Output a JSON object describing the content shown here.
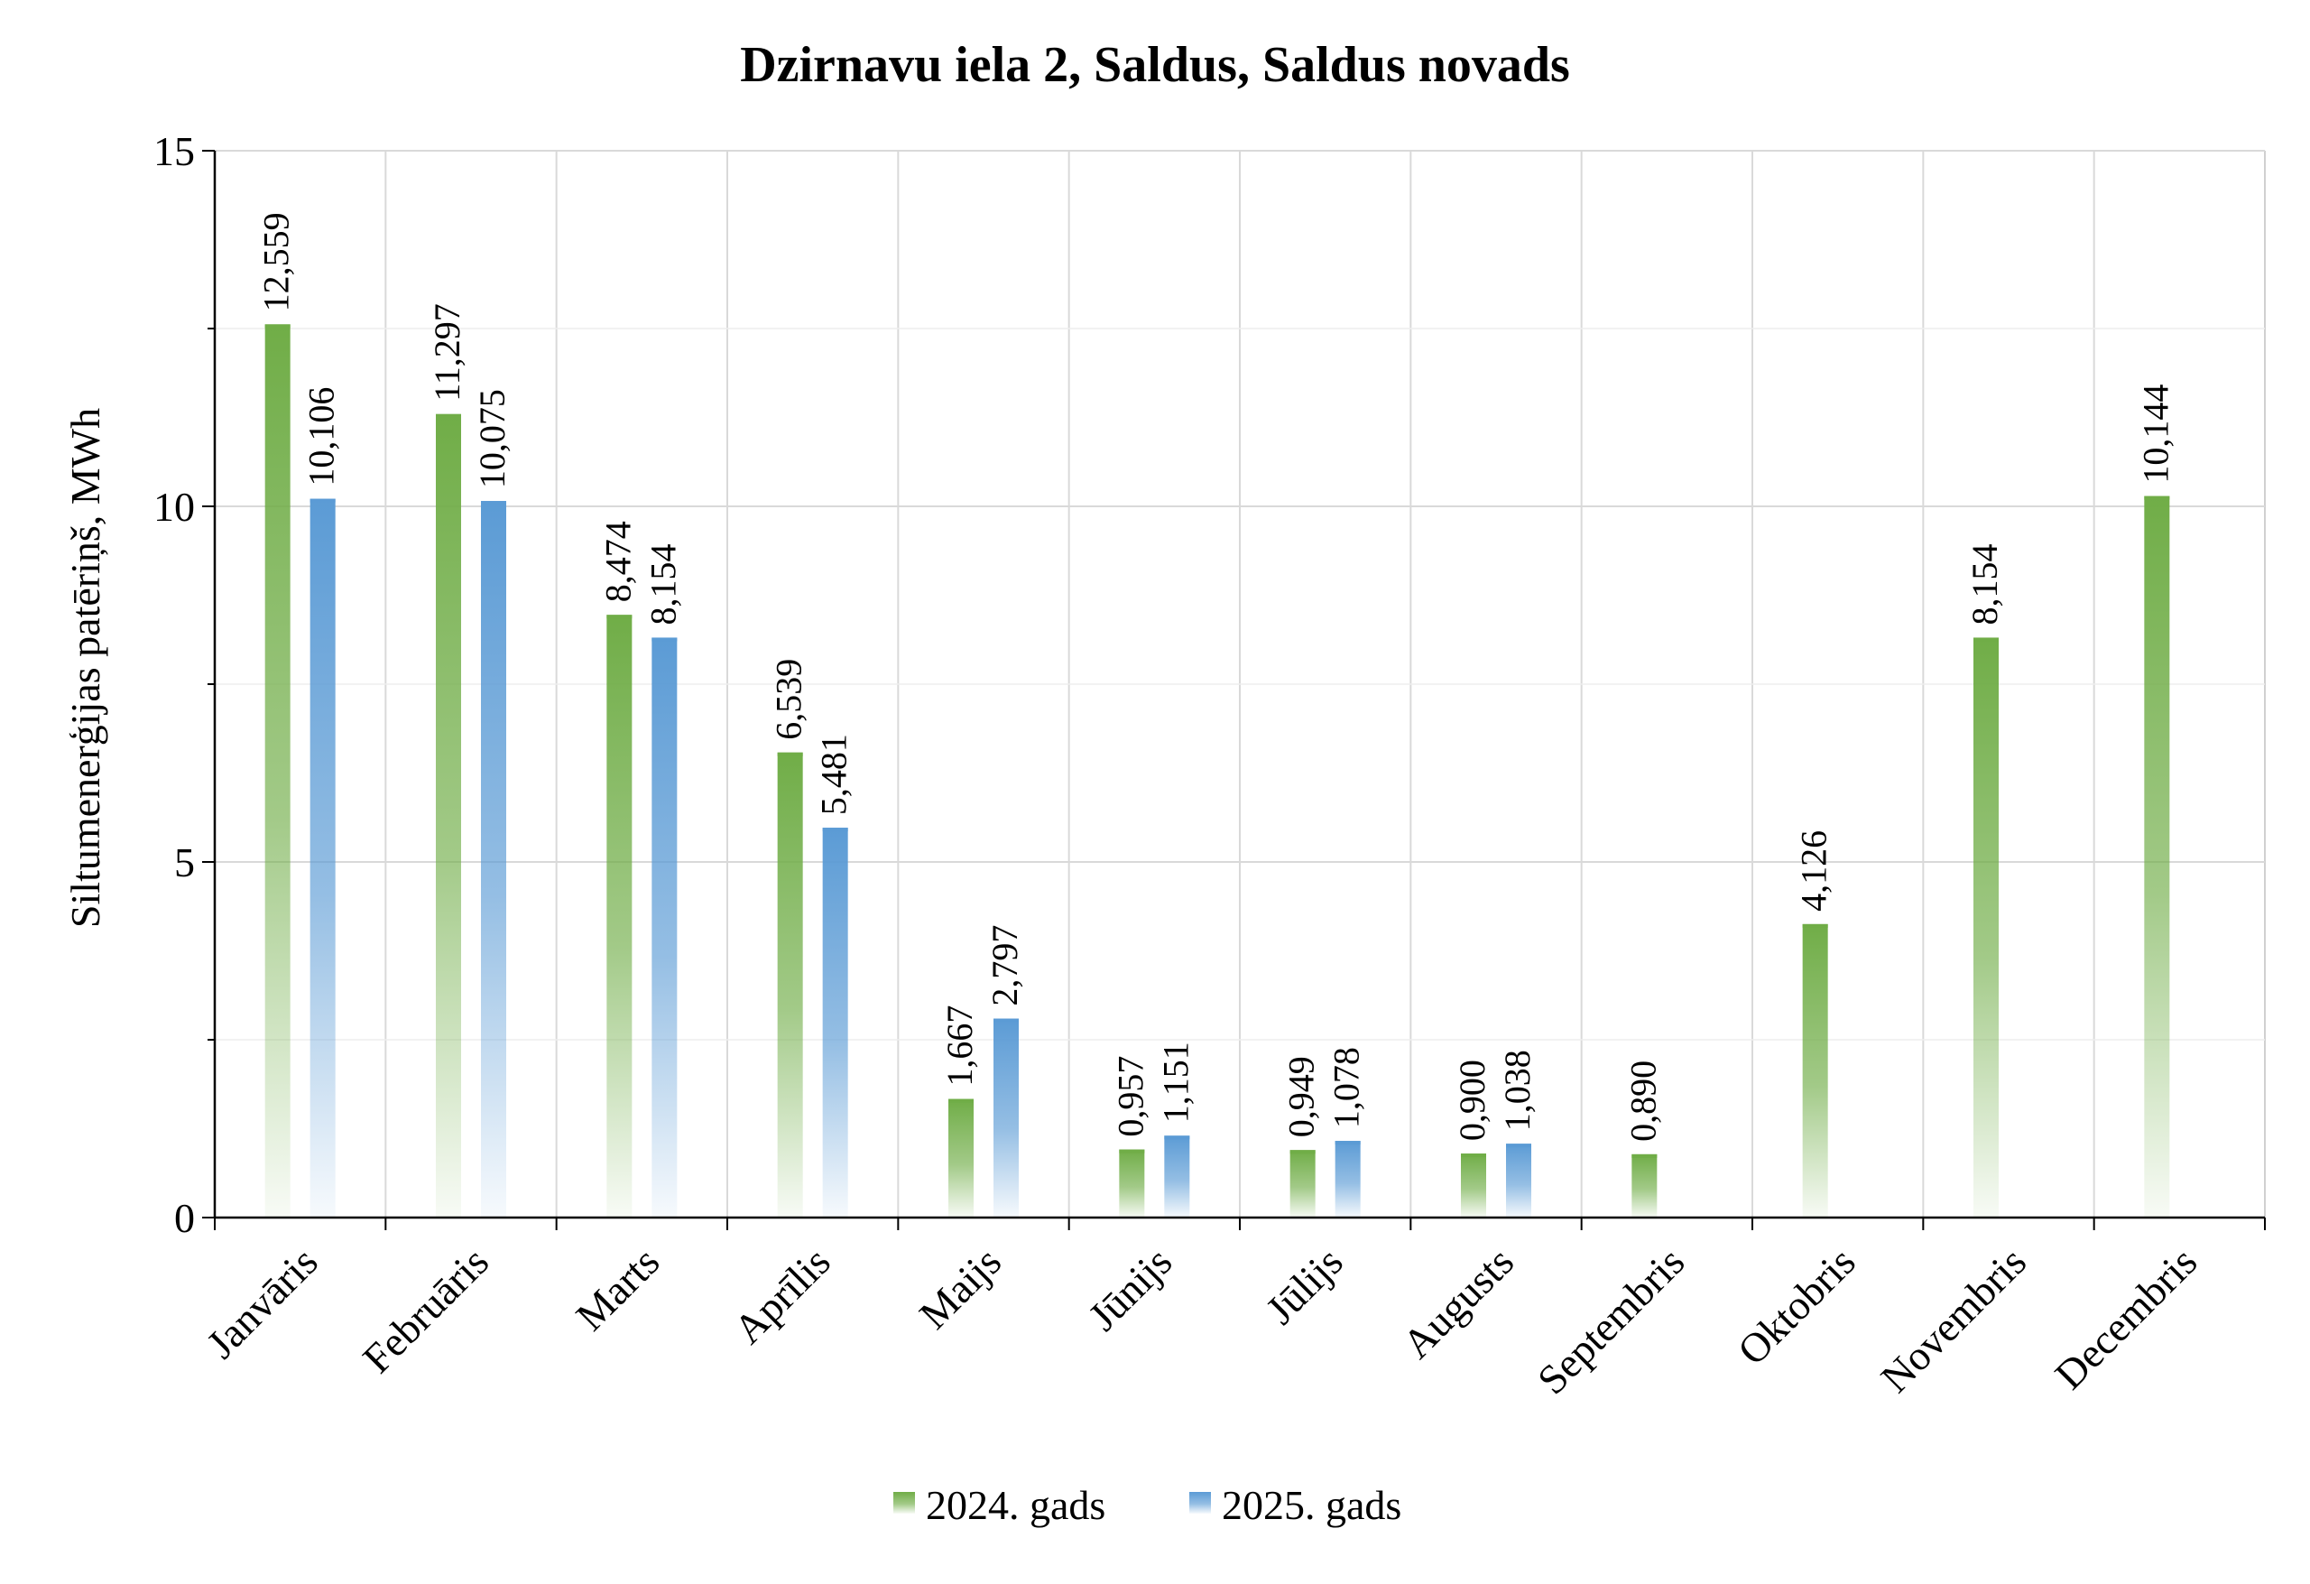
{
  "chart_data": {
    "type": "bar",
    "title": "Dzirnavu iela 2, Saldus, Saldus novads",
    "ylabel": "Siltumenerģijas patēriņš, MWh",
    "xlabel": "",
    "ylim": [
      0,
      15
    ],
    "yticks": [
      0,
      5,
      10,
      15
    ],
    "grid": true,
    "legend_position": "bottom",
    "categories": [
      "Janvāris",
      "Februāris",
      "Marts",
      "Aprīlis",
      "Maijs",
      "Jūnijs",
      "Jūlijs",
      "Augusts",
      "Septembris",
      "Oktobris",
      "Novembris",
      "Decembris"
    ],
    "series": [
      {
        "name": "2024. gads",
        "color": "#70ad47",
        "values": [
          12.559,
          11.297,
          8.474,
          6.539,
          1.667,
          0.957,
          0.949,
          0.9,
          0.89,
          4.126,
          8.154,
          10.144
        ],
        "labels": [
          "12,559",
          "11,297",
          "8,474",
          "6,539",
          "1,667",
          "0,957",
          "0,949",
          "0,900",
          "0,890",
          "4,126",
          "8,154",
          "10,144"
        ]
      },
      {
        "name": "2025. gads",
        "color": "#5b9bd5",
        "values": [
          10.106,
          10.075,
          8.154,
          5.481,
          2.797,
          1.151,
          1.078,
          1.038,
          null,
          null,
          null,
          null
        ],
        "labels": [
          "10,106",
          "10,075",
          "8,154",
          "5,481",
          "2,797",
          "1,151",
          "1,078",
          "1,038",
          null,
          null,
          null,
          null
        ]
      }
    ]
  }
}
